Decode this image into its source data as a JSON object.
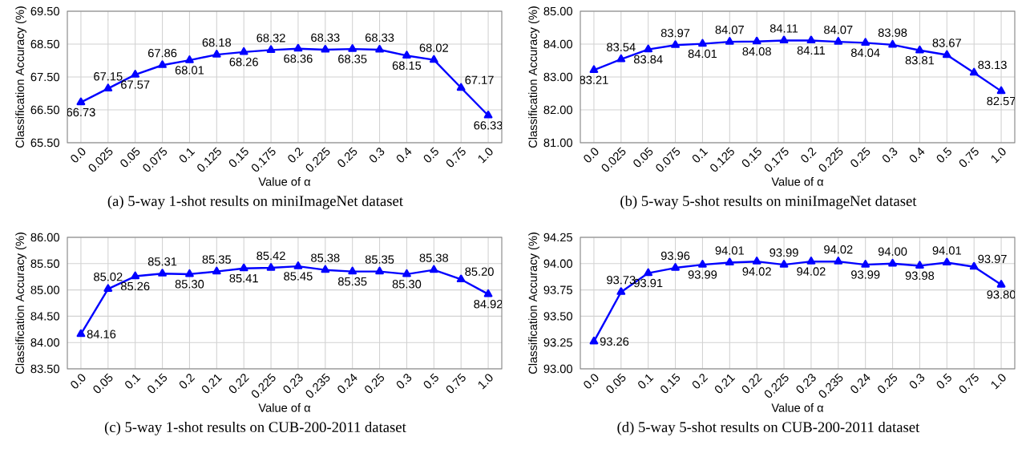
{
  "chart_data": [
    {
      "type": "line",
      "title": "(a) 5-way 1-shot results on miniImageNet dataset",
      "xlabel": "Value of α",
      "ylabel": "Classification Accuracy (%)",
      "categories": [
        "0.0",
        "0.025",
        "0.05",
        "0.075",
        "0.1",
        "0.125",
        "0.15",
        "0.175",
        "0.2",
        "0.225",
        "0.25",
        "0.3",
        "0.4",
        "0.5",
        "0.75",
        "1.0"
      ],
      "series": [
        {
          "color": "#0000ff",
          "values": [
            66.73,
            67.15,
            67.57,
            67.86,
            68.01,
            68.18,
            68.26,
            68.32,
            68.36,
            68.33,
            68.35,
            68.33,
            68.15,
            68.02,
            67.17,
            66.33
          ],
          "value_labels": [
            "66.73",
            "67.15",
            "67.57",
            "67.86",
            "68.01",
            "68.18",
            "68.26",
            "68.32",
            "68.36",
            "68.33",
            "68.35",
            "68.33",
            "68.15",
            "68.02",
            "67.17",
            "66.33"
          ]
        }
      ],
      "ylim": [
        65.5,
        69.5
      ],
      "yticks": [
        {
          "value": 65.5,
          "label": "65.50"
        },
        {
          "value": 66.5,
          "label": "66.50"
        },
        {
          "value": 67.5,
          "label": "67.50"
        },
        {
          "value": 68.5,
          "label": "68.50"
        },
        {
          "value": 69.5,
          "label": "69.50"
        }
      ],
      "grid": true,
      "marker": "triangle",
      "line_style": "solid"
    },
    {
      "type": "line",
      "title": "(b) 5-way 5-shot results on miniImageNet dataset",
      "xlabel": "Value of α",
      "ylabel": "Classification Accuracy (%)",
      "categories": [
        "0.0",
        "0.025",
        "0.05",
        "0.075",
        "0.1",
        "0.125",
        "0.15",
        "0.175",
        "0.2",
        "0.225",
        "0.25",
        "0.3",
        "0.4",
        "0.5",
        "0.75",
        "1.0"
      ],
      "series": [
        {
          "color": "#0000ff",
          "values": [
            83.21,
            83.54,
            83.84,
            83.97,
            84.01,
            84.07,
            84.08,
            84.11,
            84.11,
            84.07,
            84.04,
            83.98,
            83.81,
            83.67,
            83.13,
            82.57
          ],
          "value_labels": [
            "83.21",
            "83.54",
            "83.84",
            "83.97",
            "84.01",
            "84.07",
            "84.08",
            "84.11",
            "84.11",
            "84.07",
            "84.04",
            "83.98",
            "83.81",
            "83.67",
            "83.13",
            "82.57"
          ]
        }
      ],
      "ylim": [
        81,
        85
      ],
      "yticks": [
        {
          "value": 81,
          "label": "81.00"
        },
        {
          "value": 82,
          "label": "82.00"
        },
        {
          "value": 83,
          "label": "83.00"
        },
        {
          "value": 84,
          "label": "84.00"
        },
        {
          "value": 85,
          "label": "85.00"
        }
      ],
      "grid": true,
      "marker": "triangle",
      "line_style": "solid"
    },
    {
      "type": "line",
      "title": "(c) 5-way 1-shot results on CUB-200-2011 dataset",
      "xlabel": "Value of α",
      "ylabel": "Classification Accuracy (%)",
      "categories": [
        "0.0",
        "0.05",
        "0.1",
        "0.15",
        "0.2",
        "0.21",
        "0.22",
        "0.225",
        "0.23",
        "0.235",
        "0.24",
        "0.25",
        "0.3",
        "0.5",
        "0.75",
        "1.0"
      ],
      "series": [
        {
          "color": "#0000ff",
          "values": [
            84.16,
            85.02,
            85.26,
            85.31,
            85.3,
            85.35,
            85.41,
            85.42,
            85.45,
            85.38,
            85.35,
            85.35,
            85.3,
            85.38,
            85.2,
            84.92
          ],
          "value_labels": [
            "84.16",
            "85.02",
            "85.26",
            "85.31",
            "85.30",
            "85.35",
            "85.41",
            "85.42",
            "85.45",
            "85.38",
            "85.35",
            "85.35",
            "85.30",
            "85.38",
            "85.20",
            "84.92"
          ]
        }
      ],
      "ylim": [
        83.5,
        86
      ],
      "yticks": [
        {
          "value": 83.5,
          "label": "83.50"
        },
        {
          "value": 84,
          "label": "84.00"
        },
        {
          "value": 84.5,
          "label": "84.50"
        },
        {
          "value": 85,
          "label": "85.00"
        },
        {
          "value": 85.5,
          "label": "85.50"
        },
        {
          "value": 86,
          "label": "86.00"
        }
      ],
      "grid": true,
      "marker": "triangle",
      "line_style": "solid"
    },
    {
      "type": "line",
      "title": "(d) 5-way 5-shot results on CUB-200-2011 dataset",
      "xlabel": "Value of α",
      "ylabel": "Classification Accuracy (%)",
      "categories": [
        "0.0",
        "0.05",
        "0.1",
        "0.15",
        "0.2",
        "0.21",
        "0.22",
        "0.225",
        "0.23",
        "0.235",
        "0.24",
        "0.25",
        "0.3",
        "0.5",
        "0.75",
        "1.0"
      ],
      "series": [
        {
          "color": "#0000ff",
          "values": [
            93.26,
            93.73,
            93.91,
            93.96,
            93.99,
            94.01,
            94.02,
            93.99,
            94.02,
            94.02,
            93.99,
            94.0,
            93.98,
            94.01,
            93.97,
            93.8
          ],
          "value_labels": [
            "93.26",
            "93.73",
            "93.91",
            "93.96",
            "93.99",
            "94.01",
            "94.02",
            "93.99",
            "94.02",
            "94.02",
            "93.99",
            "94.00",
            "93.98",
            "94.01",
            "93.97",
            "93.80"
          ]
        }
      ],
      "ylim": [
        93,
        94.25
      ],
      "yticks": [
        {
          "value": 93,
          "label": "93.00"
        },
        {
          "value": 93.25,
          "label": "93.25"
        },
        {
          "value": 93.5,
          "label": "93.50"
        },
        {
          "value": 93.75,
          "label": "93.75"
        },
        {
          "value": 94,
          "label": "94.00"
        },
        {
          "value": 94.25,
          "label": "94.25"
        }
      ],
      "grid": true,
      "marker": "triangle",
      "line_style": "solid"
    }
  ]
}
